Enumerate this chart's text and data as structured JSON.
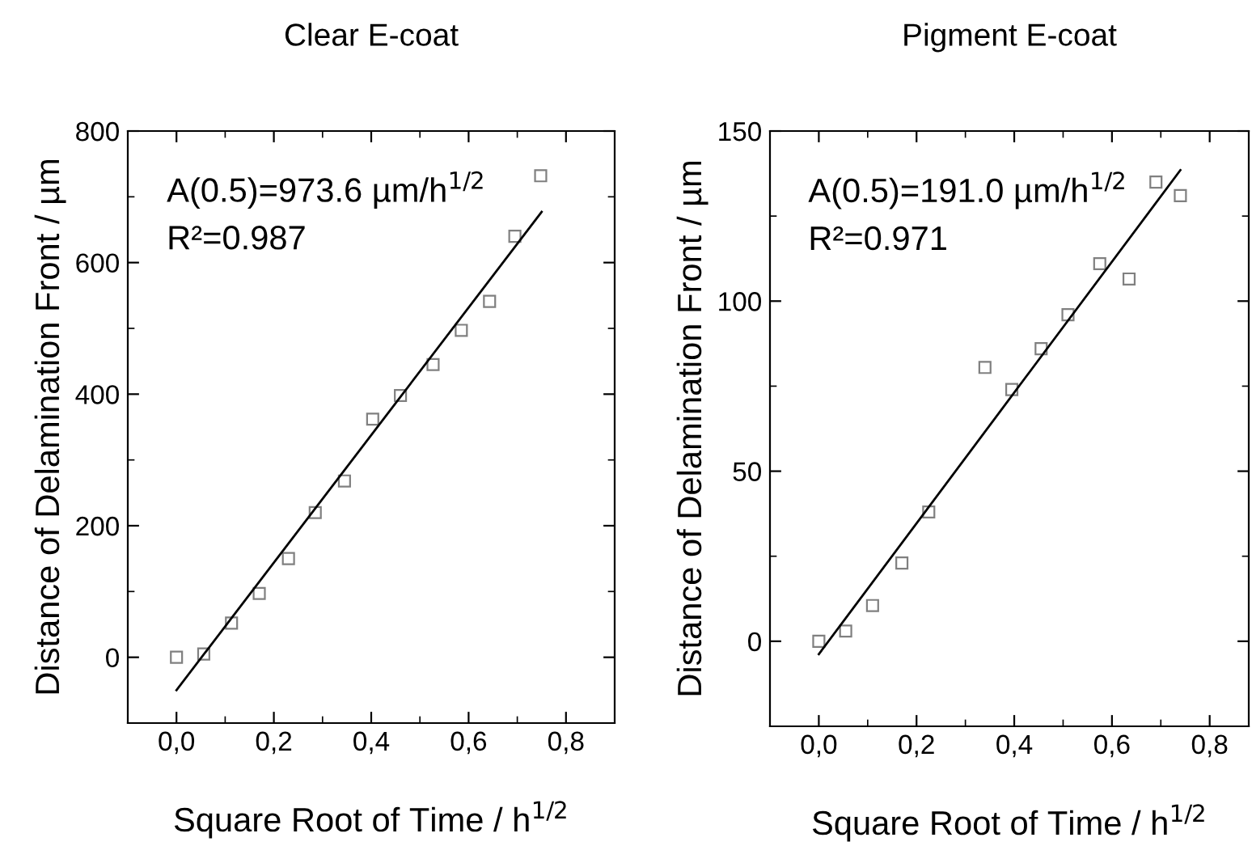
{
  "chart_data": [
    {
      "type": "scatter",
      "title": "Clear E-coat",
      "xlabel": "Square Root of Time / h$^{1/2}$",
      "ylabel": "Distance of Delamination Front / µm",
      "xlim": [
        -0.1,
        0.9
      ],
      "xticks": [
        {
          "value": 0.0,
          "label": "0,0"
        },
        {
          "value": 0.2,
          "label": "0,2"
        },
        {
          "value": 0.4,
          "label": "0,4"
        },
        {
          "value": 0.6,
          "label": "0,6"
        },
        {
          "value": 0.8,
          "label": "0,8"
        }
      ],
      "ylim": [
        -100,
        800
      ],
      "yticks": [
        0,
        200,
        400,
        600,
        800
      ],
      "grid": false,
      "annotations": [
        "A(0.5)=973.6 µm/h$^{1/2}$",
        "R²=0.987"
      ],
      "series": [
        {
          "marker": "square",
          "color": "#808080",
          "x": [
            0,
            0.056,
            0.113,
            0.17,
            0.23,
            0.285,
            0.345,
            0.403,
            0.46,
            0.527,
            0.585,
            0.643,
            0.695,
            0.748
          ],
          "values": [
            0,
            5,
            52,
            97,
            150,
            220,
            268,
            362,
            398,
            445,
            497,
            541,
            640,
            732
          ]
        },
        {
          "type": "line",
          "color": "#000000",
          "x": [
            0,
            0.75
          ],
          "values": [
            -50,
            677
          ]
        }
      ]
    },
    {
      "type": "scatter",
      "title": "Pigment E-coat",
      "xlabel": "Square Root of Time / h$^{1/2}$",
      "ylabel": "Distance of Delamination Front / µm",
      "xlim": [
        -0.1,
        0.88
      ],
      "xticks": [
        {
          "value": 0.0,
          "label": "0,0"
        },
        {
          "value": 0.2,
          "label": "0,2"
        },
        {
          "value": 0.4,
          "label": "0,4"
        },
        {
          "value": 0.6,
          "label": "0,6"
        },
        {
          "value": 0.8,
          "label": "0,8"
        }
      ],
      "ylim": [
        -25,
        150
      ],
      "yticks": [
        0,
        50,
        100,
        150
      ],
      "grid": false,
      "annotations": [
        "A(0.5)=191.0 µm/h$^{1/2}$",
        "R²=0.971"
      ],
      "series": [
        {
          "marker": "square",
          "color": "#808080",
          "x": [
            0,
            0.055,
            0.11,
            0.17,
            0.225,
            0.34,
            0.395,
            0.455,
            0.51,
            0.575,
            0.635,
            0.69,
            0.74
          ],
          "values": [
            0,
            3,
            10.5,
            23,
            38,
            80.5,
            74,
            86,
            96,
            111,
            106.5,
            135,
            131
          ]
        },
        {
          "type": "line",
          "color": "#000000",
          "x": [
            0,
            0.74
          ],
          "values": [
            -3.8,
            138.5
          ]
        }
      ]
    }
  ]
}
